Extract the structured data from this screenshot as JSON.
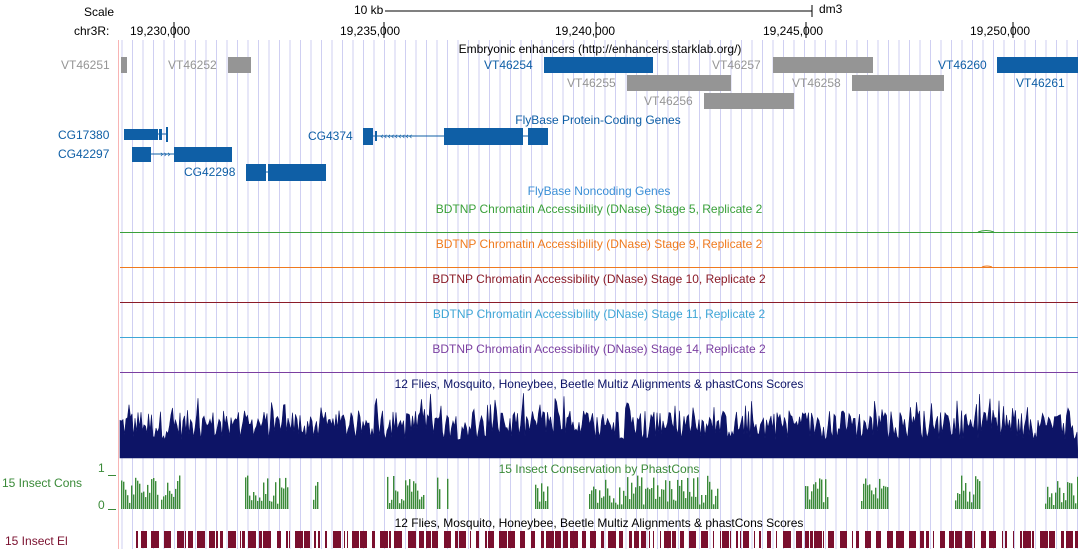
{
  "ruler": {
    "scale_label": "Scale",
    "scale_value": "10 kb",
    "assembly": "dm3",
    "chrom_label": "chr3R:",
    "ticks": [
      "19,230,000",
      "19,235,000",
      "19,240,000",
      "19,245,000",
      "19,250,000"
    ]
  },
  "enhancers": {
    "title": "Embryonic enhancers (http://enhancers.starklab.org/)",
    "items": [
      {
        "label": "VT46251",
        "state": "gray"
      },
      {
        "label": "VT46252",
        "state": "gray"
      },
      {
        "label": "VT46254",
        "state": "blue"
      },
      {
        "label": "VT46255",
        "state": "gray"
      },
      {
        "label": "VT46256",
        "state": "gray"
      },
      {
        "label": "VT46257",
        "state": "gray"
      },
      {
        "label": "VT46258",
        "state": "gray"
      },
      {
        "label": "VT46260",
        "state": "blue"
      },
      {
        "label": "VT46261",
        "state": "blue"
      }
    ]
  },
  "genes": {
    "title": "FlyBase Protein-Coding Genes",
    "items": [
      "CG17380",
      "CG42297",
      "CG4374",
      "CG42298"
    ]
  },
  "noncoding": {
    "title": "FlyBase Noncoding Genes"
  },
  "dnase": [
    {
      "title": "BDTNP Chromatin Accessibility (DNase) Stage 5, Replicate 2",
      "color": "#3aa03a"
    },
    {
      "title": "BDTNP Chromatin Accessibility (DNase) Stage 9, Replicate 2",
      "color": "#ef7a1e"
    },
    {
      "title": "BDTNP Chromatin Accessibility (DNase) Stage 10, Replicate 2",
      "color": "#8b1c28"
    },
    {
      "title": "BDTNP Chromatin Accessibility (DNase) Stage 11, Replicate 2",
      "color": "#3fa6d6"
    },
    {
      "title": "BDTNP Chromatin Accessibility (DNase) Stage 14, Replicate 2",
      "color": "#7b3fa0"
    }
  ],
  "multiz": {
    "title": "12 Flies, Mosquito, Honeybee, Beetle Multiz Alignments & phastCons Scores",
    "color": "#0d1466"
  },
  "insect_cons": {
    "label": "15 Insect Cons",
    "title": "15 Insect Conservation by PhastCons",
    "axis_max": "1",
    "axis_min": "0",
    "color": "#3a8a38"
  },
  "insect_el": {
    "label": "15 Insect El",
    "title": "12 Flies, Mosquito, Honeybee, Beetle Multiz Alignments & phastCons Scores",
    "color": "#7a0f2e"
  },
  "colors": {
    "gene_blue": "#0f5fa6",
    "enh_gray": "#959595",
    "grid_blue": "#cfcff2",
    "highlight_pink": "#f8b4b4"
  }
}
